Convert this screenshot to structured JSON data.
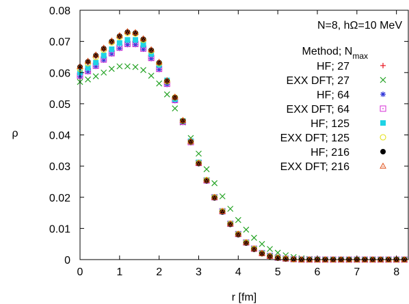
{
  "chart_data": {
    "type": "scatter",
    "title": "",
    "annotation": "N=8, hΩ=10 MeV",
    "legend_title": "Method; N",
    "legend_title_sub": "max",
    "xlabel": "r [fm]",
    "ylabel": "ρ",
    "xlim": [
      0,
      8.3
    ],
    "ylim": [
      0,
      0.08
    ],
    "xticks": [
      0,
      1,
      2,
      3,
      4,
      5,
      6,
      7,
      8
    ],
    "yticks": [
      0,
      0.01,
      0.02,
      0.03,
      0.04,
      0.05,
      0.06,
      0.07,
      0.08
    ],
    "yticklabels": [
      "0",
      "0.01",
      "0.02",
      "0.03",
      "0.04",
      "0.05",
      "0.06",
      "0.07",
      "0.08"
    ],
    "legend_position": "top-right",
    "grid": false,
    "x": [
      0,
      0.2,
      0.4,
      0.6,
      0.8,
      1.0,
      1.2,
      1.4,
      1.6,
      1.8,
      2.0,
      2.2,
      2.4,
      2.6,
      2.8,
      3.0,
      3.2,
      3.4,
      3.6,
      3.8,
      4.0,
      4.2,
      4.4,
      4.6,
      4.8,
      5.0,
      5.2,
      5.4,
      5.6,
      5.8,
      6.0,
      6.2,
      6.4,
      6.6,
      6.8,
      7.0,
      7.2,
      7.4,
      7.6,
      7.8,
      8.0,
      8.2
    ],
    "series": [
      {
        "name": "HF; 27",
        "marker": "plus",
        "color": "#e8141e",
        "values": [
          0.0615,
          0.0632,
          0.0652,
          0.0675,
          0.0698,
          0.0715,
          0.0728,
          0.0725,
          0.0705,
          0.067,
          0.063,
          0.0572,
          0.052,
          0.0445,
          0.0378,
          0.031,
          0.0255,
          0.02,
          0.0155,
          0.0115,
          0.0082,
          0.0055,
          0.0035,
          0.002,
          0.0011,
          0.0006,
          0.0003,
          0.0001,
          0,
          0,
          0,
          0,
          0,
          0,
          0,
          0,
          0,
          0,
          0,
          0,
          0,
          0
        ]
      },
      {
        "name": "EXX DFT; 27",
        "marker": "x",
        "color": "#21a121",
        "values": [
          0.057,
          0.0578,
          0.0588,
          0.06,
          0.0612,
          0.062,
          0.062,
          0.0618,
          0.0608,
          0.059,
          0.0565,
          0.053,
          0.0485,
          0.044,
          0.039,
          0.034,
          0.029,
          0.0245,
          0.0203,
          0.0163,
          0.0127,
          0.0096,
          0.007,
          0.005,
          0.0034,
          0.0022,
          0.0014,
          0.0008,
          0.0004,
          0.0002,
          0.0001,
          0,
          0,
          0,
          0,
          0,
          0,
          0,
          0,
          0,
          0,
          0
        ]
      },
      {
        "name": "HF; 64",
        "marker": "star",
        "color": "#2b31d8",
        "values": [
          0.0588,
          0.0603,
          0.062,
          0.064,
          0.066,
          0.0678,
          0.069,
          0.069,
          0.0675,
          0.0645,
          0.061,
          0.0562,
          0.051,
          0.044,
          0.0375,
          0.0308,
          0.0252,
          0.0198,
          0.0153,
          0.0113,
          0.0081,
          0.0055,
          0.0035,
          0.0021,
          0.0012,
          0.0006,
          0.0003,
          0.0001,
          0,
          0,
          0,
          0,
          0,
          0,
          0,
          0,
          0,
          0,
          0,
          0,
          0,
          0
        ]
      },
      {
        "name": "EXX DFT; 64",
        "marker": "square-dot",
        "color": "#d42ad4",
        "values": [
          0.059,
          0.0605,
          0.0622,
          0.0642,
          0.0662,
          0.068,
          0.0692,
          0.0692,
          0.0677,
          0.0647,
          0.0612,
          0.0564,
          0.0512,
          0.0442,
          0.0377,
          0.031,
          0.0254,
          0.02,
          0.0155,
          0.0115,
          0.0082,
          0.0055,
          0.0035,
          0.0021,
          0.0012,
          0.0006,
          0.0003,
          0.0001,
          0,
          0,
          0,
          0,
          0,
          0,
          0,
          0,
          0,
          0,
          0,
          0,
          0,
          0
        ]
      },
      {
        "name": "HF; 125",
        "marker": "filled-square",
        "color": "#1fd3e5",
        "values": [
          0.06,
          0.0615,
          0.0632,
          0.0655,
          0.0675,
          0.0695,
          0.0705,
          0.0705,
          0.069,
          0.066,
          0.0625,
          0.0575,
          0.0515,
          0.0445,
          0.038,
          0.0312,
          0.0255,
          0.02,
          0.0155,
          0.0115,
          0.0082,
          0.0055,
          0.0035,
          0.0021,
          0.0012,
          0.0006,
          0.0003,
          0.0001,
          0,
          0,
          0,
          0,
          0,
          0,
          0,
          0,
          0,
          0,
          0,
          0,
          0,
          0
        ]
      },
      {
        "name": "EXX DFT; 125",
        "marker": "circle",
        "color": "#e3e016",
        "values": [
          0.0612,
          0.063,
          0.065,
          0.0673,
          0.0697,
          0.0714,
          0.0727,
          0.0725,
          0.0705,
          0.067,
          0.063,
          0.0572,
          0.052,
          0.0445,
          0.0378,
          0.031,
          0.0255,
          0.02,
          0.0155,
          0.0115,
          0.0082,
          0.0055,
          0.0035,
          0.002,
          0.0011,
          0.0006,
          0.0003,
          0.0001,
          0,
          0,
          0,
          0,
          0,
          0,
          0,
          0,
          0,
          0,
          0,
          0,
          0,
          0
        ]
      },
      {
        "name": "HF; 216",
        "marker": "filled-circle",
        "color": "#000000",
        "values": [
          0.0618,
          0.0635,
          0.0655,
          0.0677,
          0.07,
          0.0717,
          0.073,
          0.0727,
          0.0707,
          0.0672,
          0.0632,
          0.0573,
          0.052,
          0.0445,
          0.0378,
          0.0308,
          0.0253,
          0.0198,
          0.0153,
          0.0113,
          0.008,
          0.0053,
          0.0033,
          0.0019,
          0.001,
          0.0005,
          0.0002,
          0.0001,
          0,
          0,
          0,
          0,
          0,
          0,
          0,
          0,
          0,
          0,
          0,
          0,
          0,
          0
        ]
      },
      {
        "name": "EXX DFT; 216",
        "marker": "triangle",
        "color": "#e0511a",
        "values": [
          0.062,
          0.0637,
          0.0657,
          0.0679,
          0.0702,
          0.0719,
          0.0732,
          0.0729,
          0.0709,
          0.0674,
          0.0634,
          0.0575,
          0.0522,
          0.0447,
          0.038,
          0.031,
          0.0255,
          0.02,
          0.0155,
          0.0115,
          0.0082,
          0.0055,
          0.0035,
          0.002,
          0.0011,
          0.0006,
          0.0003,
          0.0001,
          0,
          0,
          0,
          0,
          0,
          0,
          0,
          0,
          0,
          0,
          0,
          0,
          0,
          0
        ]
      }
    ]
  }
}
